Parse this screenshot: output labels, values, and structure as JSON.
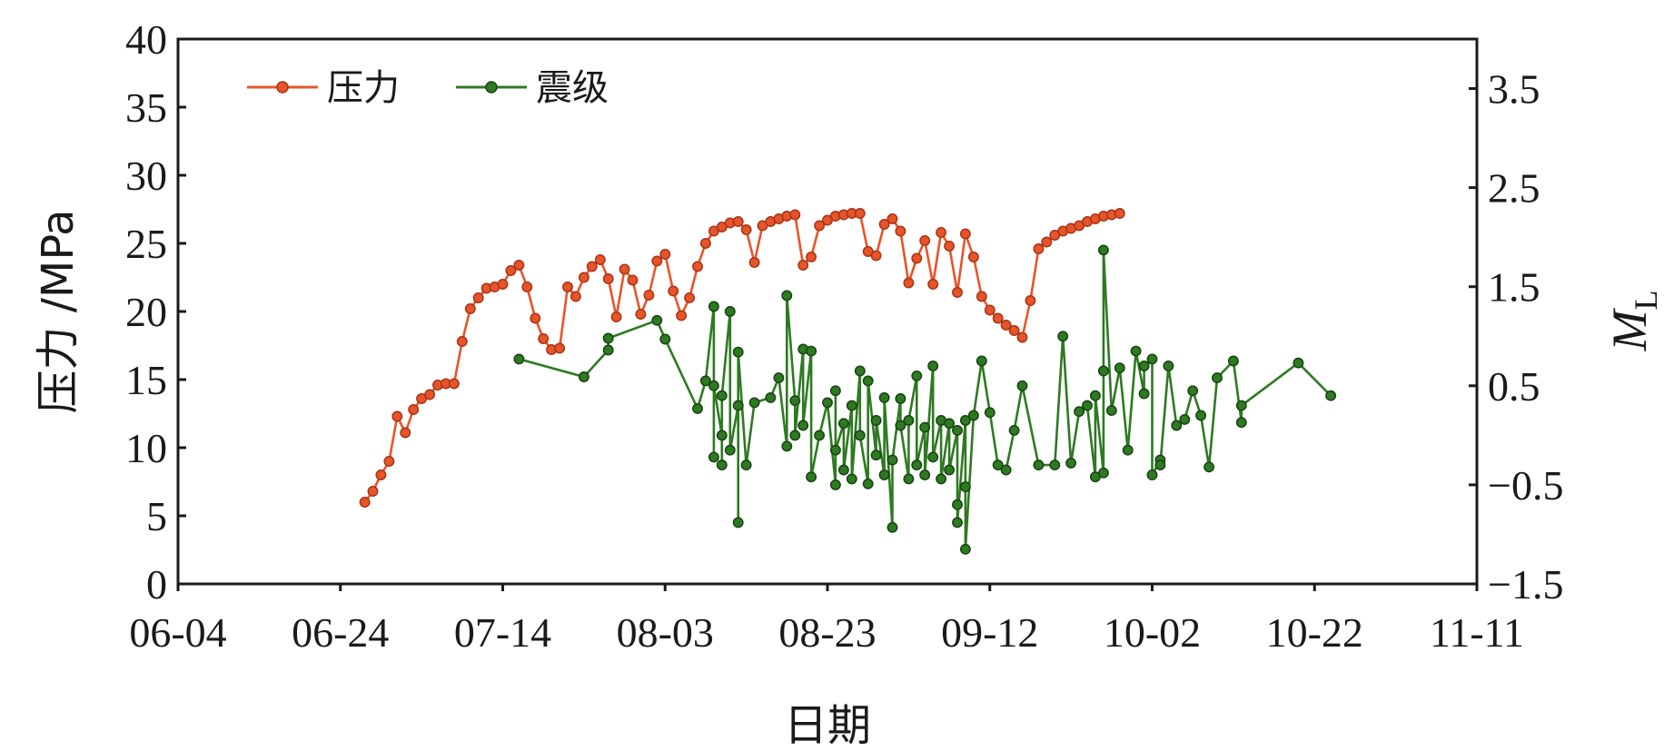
{
  "chart_data": {
    "type": "line",
    "xlabel": "日期",
    "ylabel_left": "压力 /MPa",
    "ylabel_right": "M",
    "ylabel_right_sub": "L",
    "x_ticks": [
      "06-04",
      "06-24",
      "07-14",
      "08-03",
      "08-23",
      "09-12",
      "10-02",
      "10-22",
      "11-11"
    ],
    "x_range": [
      "06-04",
      "11-11"
    ],
    "y_left_ticks": [
      "0",
      "5",
      "10",
      "15",
      "20",
      "25",
      "30",
      "35",
      "40"
    ],
    "y_left_range": [
      0,
      40
    ],
    "y_right_ticks": [
      "−1.5",
      "−0.5",
      "0.5",
      "1.5",
      "2.5",
      "3.5"
    ],
    "y_right_range": [
      -1.5,
      4.0
    ],
    "legend_position": "top-left",
    "series": [
      {
        "name": "压力",
        "axis": "left",
        "color": "#e8542a",
        "points": [
          [
            "06-27",
            6.0
          ],
          [
            "06-28",
            6.8
          ],
          [
            "06-29",
            8.0
          ],
          [
            "06-30",
            9.0
          ],
          [
            "07-01",
            12.3
          ],
          [
            "07-02",
            11.1
          ],
          [
            "07-03",
            12.8
          ],
          [
            "07-04",
            13.6
          ],
          [
            "07-05",
            13.9
          ],
          [
            "07-06",
            14.6
          ],
          [
            "07-07",
            14.7
          ],
          [
            "07-08",
            14.7
          ],
          [
            "07-09",
            17.8
          ],
          [
            "07-10",
            20.2
          ],
          [
            "07-11",
            21.0
          ],
          [
            "07-12",
            21.7
          ],
          [
            "07-13",
            21.8
          ],
          [
            "07-14",
            22.0
          ],
          [
            "07-15",
            23.0
          ],
          [
            "07-16",
            23.4
          ],
          [
            "07-17",
            21.8
          ],
          [
            "07-18",
            19.5
          ],
          [
            "07-19",
            18.0
          ],
          [
            "07-20",
            17.2
          ],
          [
            "07-21",
            17.3
          ],
          [
            "07-22",
            21.8
          ],
          [
            "07-23",
            21.1
          ],
          [
            "07-24",
            22.5
          ],
          [
            "07-25",
            23.3
          ],
          [
            "07-26",
            23.8
          ],
          [
            "07-27",
            22.4
          ],
          [
            "07-28",
            19.6
          ],
          [
            "07-29",
            23.1
          ],
          [
            "07-30",
            22.3
          ],
          [
            "07-31",
            19.8
          ],
          [
            "08-01",
            21.2
          ],
          [
            "08-02",
            23.7
          ],
          [
            "08-03",
            24.2
          ],
          [
            "08-04",
            21.5
          ],
          [
            "08-05",
            19.7
          ],
          [
            "08-06",
            21.0
          ],
          [
            "08-07",
            23.3
          ],
          [
            "08-08",
            25.0
          ],
          [
            "08-09",
            25.9
          ],
          [
            "08-10",
            26.2
          ],
          [
            "08-11",
            26.5
          ],
          [
            "08-12",
            26.6
          ],
          [
            "08-13",
            26.0
          ],
          [
            "08-14",
            23.6
          ],
          [
            "08-15",
            26.3
          ],
          [
            "08-16",
            26.6
          ],
          [
            "08-17",
            26.8
          ],
          [
            "08-18",
            27.0
          ],
          [
            "08-19",
            27.1
          ],
          [
            "08-20",
            23.4
          ],
          [
            "08-21",
            24.0
          ],
          [
            "08-22",
            26.3
          ],
          [
            "08-23",
            26.7
          ],
          [
            "08-24",
            27.0
          ],
          [
            "08-25",
            27.1
          ],
          [
            "08-26",
            27.2
          ],
          [
            "08-27",
            27.2
          ],
          [
            "08-28",
            24.4
          ],
          [
            "08-29",
            24.1
          ],
          [
            "08-30",
            26.4
          ],
          [
            "08-31",
            26.8
          ],
          [
            "09-01",
            25.9
          ],
          [
            "09-02",
            22.1
          ],
          [
            "09-03",
            23.9
          ],
          [
            "09-04",
            25.2
          ],
          [
            "09-05",
            22.0
          ],
          [
            "09-06",
            25.8
          ],
          [
            "09-07",
            24.8
          ],
          [
            "09-08",
            21.4
          ],
          [
            "09-09",
            25.7
          ],
          [
            "09-10",
            24.0
          ],
          [
            "09-11",
            21.1
          ],
          [
            "09-12",
            20.1
          ],
          [
            "09-13",
            19.5
          ],
          [
            "09-14",
            19.0
          ],
          [
            "09-15",
            18.6
          ],
          [
            "09-16",
            18.1
          ],
          [
            "09-17",
            20.8
          ],
          [
            "09-18",
            24.6
          ],
          [
            "09-19",
            25.1
          ],
          [
            "09-20",
            25.6
          ],
          [
            "09-21",
            25.9
          ],
          [
            "09-22",
            26.1
          ],
          [
            "09-23",
            26.3
          ],
          [
            "09-24",
            26.6
          ],
          [
            "09-25",
            26.8
          ],
          [
            "09-26",
            27.0
          ],
          [
            "09-27",
            27.1
          ],
          [
            "09-28",
            27.2
          ]
        ]
      },
      {
        "name": "震级",
        "axis": "right",
        "color": "#2e7a22",
        "points": [
          [
            "07-16",
            0.77
          ],
          [
            "07-24",
            0.59
          ],
          [
            "07-27",
            0.86
          ],
          [
            "07-27",
            0.98
          ],
          [
            "08-02",
            1.16
          ],
          [
            "08-03",
            0.97
          ],
          [
            "08-07",
            0.27
          ],
          [
            "08-08",
            0.55
          ],
          [
            "08-09",
            1.3
          ],
          [
            "08-09",
            -0.22
          ],
          [
            "08-09",
            0.5
          ],
          [
            "08-10",
            0.0
          ],
          [
            "08-10",
            -0.3
          ],
          [
            "08-10",
            0.4
          ],
          [
            "08-11",
            1.25
          ],
          [
            "08-11",
            -0.15
          ],
          [
            "08-12",
            0.3
          ],
          [
            "08-12",
            -0.88
          ],
          [
            "08-12",
            0.84
          ],
          [
            "08-13",
            -0.3
          ],
          [
            "08-14",
            0.33
          ],
          [
            "08-16",
            0.38
          ],
          [
            "08-17",
            0.58
          ],
          [
            "08-18",
            -0.11
          ],
          [
            "08-18",
            1.41
          ],
          [
            "08-19",
            0.35
          ],
          [
            "08-19",
            0.0
          ],
          [
            "08-20",
            0.87
          ],
          [
            "08-20",
            0.1
          ],
          [
            "08-21",
            0.85
          ],
          [
            "08-21",
            -0.42
          ],
          [
            "08-22",
            0.0
          ],
          [
            "08-23",
            0.33
          ],
          [
            "08-24",
            -0.5
          ],
          [
            "08-24",
            0.45
          ],
          [
            "08-24",
            -0.15
          ],
          [
            "08-25",
            0.12
          ],
          [
            "08-25",
            -0.35
          ],
          [
            "08-26",
            0.3
          ],
          [
            "08-26",
            -0.44
          ],
          [
            "08-27",
            0.65
          ],
          [
            "08-27",
            0.0
          ],
          [
            "08-28",
            -0.49
          ],
          [
            "08-28",
            0.55
          ],
          [
            "08-29",
            -0.2
          ],
          [
            "08-29",
            0.15
          ],
          [
            "08-30",
            -0.4
          ],
          [
            "08-30",
            0.38
          ],
          [
            "08-31",
            -0.93
          ],
          [
            "08-31",
            -0.25
          ],
          [
            "09-01",
            0.37
          ],
          [
            "09-01",
            0.1
          ],
          [
            "09-02",
            -0.44
          ],
          [
            "09-02",
            0.15
          ],
          [
            "09-03",
            0.6
          ],
          [
            "09-03",
            -0.3
          ],
          [
            "09-04",
            0.08
          ],
          [
            "09-04",
            -0.4
          ],
          [
            "09-05",
            0.7
          ],
          [
            "09-05",
            -0.22
          ],
          [
            "09-06",
            0.15
          ],
          [
            "09-06",
            -0.44
          ],
          [
            "09-07",
            0.12
          ],
          [
            "09-07",
            -0.35
          ],
          [
            "09-08",
            0.05
          ],
          [
            "09-08",
            -0.7
          ],
          [
            "09-08",
            -0.88
          ],
          [
            "09-09",
            0.15
          ],
          [
            "09-09",
            -0.52
          ],
          [
            "09-09",
            -1.15
          ],
          [
            "09-10",
            0.2
          ],
          [
            "09-11",
            0.75
          ],
          [
            "09-12",
            0.23
          ],
          [
            "09-13",
            -0.3
          ],
          [
            "09-14",
            -0.35
          ],
          [
            "09-15",
            0.05
          ],
          [
            "09-16",
            0.5
          ],
          [
            "09-18",
            -0.3
          ],
          [
            "09-20",
            -0.3
          ],
          [
            "09-21",
            1.0
          ],
          [
            "09-22",
            -0.28
          ],
          [
            "09-23",
            0.24
          ],
          [
            "09-24",
            0.3
          ],
          [
            "09-25",
            -0.42
          ],
          [
            "09-25",
            0.4
          ],
          [
            "09-26",
            -0.38
          ],
          [
            "09-26",
            0.65
          ],
          [
            "09-26",
            1.87
          ],
          [
            "09-27",
            0.25
          ],
          [
            "09-28",
            0.68
          ],
          [
            "09-29",
            -0.15
          ],
          [
            "09-30",
            0.85
          ],
          [
            "10-01",
            0.42
          ],
          [
            "10-01",
            0.7
          ],
          [
            "10-02",
            0.77
          ],
          [
            "10-02",
            -0.4
          ],
          [
            "10-03",
            -0.25
          ],
          [
            "10-03",
            -0.3
          ],
          [
            "10-04",
            0.7
          ],
          [
            "10-05",
            0.1
          ],
          [
            "10-06",
            0.16
          ],
          [
            "10-07",
            0.45
          ],
          [
            "10-08",
            0.2
          ],
          [
            "10-09",
            -0.32
          ],
          [
            "10-10",
            0.58
          ],
          [
            "10-12",
            0.75
          ],
          [
            "10-13",
            0.13
          ],
          [
            "10-13",
            0.3
          ],
          [
            "10-20",
            0.73
          ],
          [
            "10-24",
            0.4
          ]
        ]
      }
    ]
  }
}
